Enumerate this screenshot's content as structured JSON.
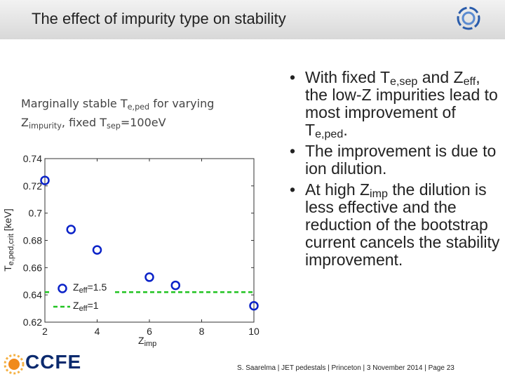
{
  "header": {
    "title": "The effect of impurity type on stability"
  },
  "chart_data": {
    "type": "scatter",
    "subtitle": [
      "Marginally stable T",
      {
        "sub": "e,ped"
      },
      " for varying Z",
      {
        "sub": "impurity"
      },
      ", fixed T",
      {
        "sub": "sep"
      },
      "=100eV"
    ],
    "x_label": [
      "Z",
      {
        "sub": "imp"
      }
    ],
    "y_label": [
      "T",
      {
        "sub": "e,ped,crit"
      },
      " [keV]"
    ],
    "xlim": [
      2,
      10
    ],
    "xticks": [
      2,
      4,
      6,
      8,
      10
    ],
    "ylim": [
      0.62,
      0.74
    ],
    "yticks": [
      0.62,
      0.64,
      0.66,
      0.68,
      0.7,
      0.72,
      0.74
    ],
    "series": [
      {
        "name": [
          "Z",
          {
            "sub": "eff"
          },
          "=1.5"
        ],
        "color": "#0a22c8",
        "x": [
          2,
          3,
          4,
          6,
          7,
          10
        ],
        "values": [
          0.724,
          0.688,
          0.673,
          0.653,
          0.647,
          0.632
        ]
      }
    ],
    "hline": {
      "name": [
        "Z",
        {
          "sub": "eff"
        },
        "=1"
      ],
      "color": "#22c322",
      "value": 0.642
    }
  },
  "bullets": [
    [
      "With fixed T",
      {
        "sub": "e,sep"
      },
      " and Z",
      {
        "sub": "eff"
      },
      ", the low-Z impurities lead to most improvement of T",
      {
        "sub": "e,ped"
      },
      "."
    ],
    [
      "The improvement is due to ion dilution."
    ],
    [
      "At high Z",
      {
        "sub": "imp"
      },
      " the dilution is less effective and the reduction of the bootstrap current cancels the stability improvement."
    ]
  ],
  "footer": {
    "logo": "CCFE",
    "text": "S. Saarelma | JET pedestals | Princeton | 3 November 2014 | Page 23"
  }
}
